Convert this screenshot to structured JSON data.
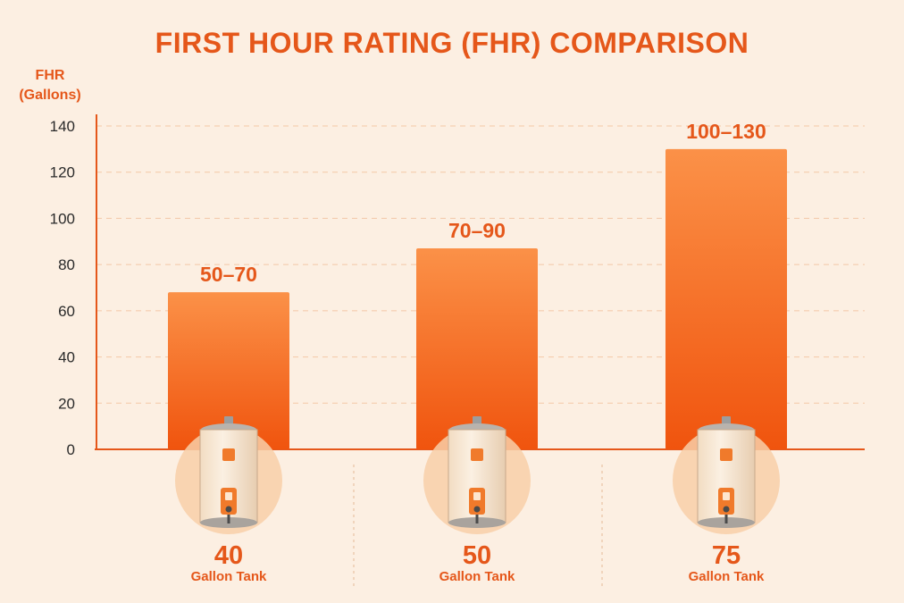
{
  "chart_data": {
    "type": "bar",
    "title": "FIRST HOUR RATING (FHR) COMPARISON",
    "ylabel_lines": [
      "FHR",
      "(Gallons)"
    ],
    "ylim": [
      0,
      140
    ],
    "yticks": [
      0,
      20,
      40,
      60,
      80,
      100,
      120,
      140
    ],
    "grid": true,
    "categories": [
      {
        "size": "40",
        "unit": "Gallon Tank"
      },
      {
        "size": "50",
        "unit": "Gallon Tank"
      },
      {
        "size": "75",
        "unit": "Gallon Tank"
      }
    ],
    "values": [
      68,
      87,
      130
    ],
    "value_labels": [
      "50–70",
      "70–90",
      "100–130"
    ],
    "colors": {
      "bar_top": "#fb9148",
      "bar_bottom": "#f0540e",
      "accent": "#e5571a",
      "background": "#fcefe2",
      "grid": "#f3c8a6"
    }
  },
  "icons": [
    "water-heater-icon",
    "water-heater-icon",
    "water-heater-icon"
  ]
}
